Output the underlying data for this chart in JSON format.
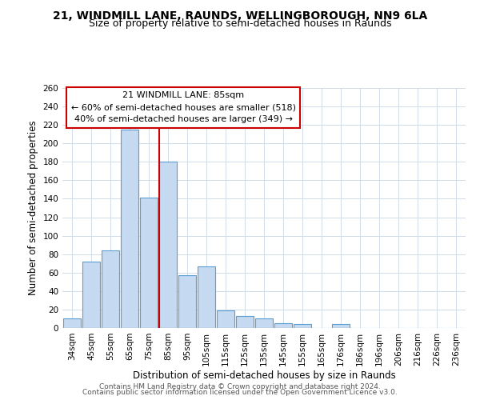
{
  "title": "21, WINDMILL LANE, RAUNDS, WELLINGBOROUGH, NN9 6LA",
  "subtitle": "Size of property relative to semi-detached houses in Raunds",
  "xlabel": "Distribution of semi-detached houses by size in Raunds",
  "ylabel": "Number of semi-detached properties",
  "bar_labels": [
    "34sqm",
    "45sqm",
    "55sqm",
    "65sqm",
    "75sqm",
    "85sqm",
    "95sqm",
    "105sqm",
    "115sqm",
    "125sqm",
    "135sqm",
    "145sqm",
    "155sqm",
    "165sqm",
    "176sqm",
    "186sqm",
    "196sqm",
    "206sqm",
    "216sqm",
    "226sqm",
    "236sqm"
  ],
  "bar_values": [
    10,
    72,
    84,
    215,
    141,
    180,
    57,
    67,
    19,
    13,
    10,
    5,
    4,
    0,
    4,
    0,
    0,
    0,
    0,
    0,
    0
  ],
  "bar_color": "#c5d9f0",
  "bar_edge_color": "#5a9fd4",
  "highlight_line_color": "#cc0000",
  "highlight_line_index": 5,
  "property_label": "21 WINDMILL LANE: 85sqm",
  "smaller_text": "← 60% of semi-detached houses are smaller (518)",
  "larger_text": "40% of semi-detached houses are larger (349) →",
  "annotation_box_color": "#ffffff",
  "annotation_box_edge": "#cc0000",
  "ylim": [
    0,
    260
  ],
  "yticks": [
    0,
    20,
    40,
    60,
    80,
    100,
    120,
    140,
    160,
    180,
    200,
    220,
    240,
    260
  ],
  "footer1": "Contains HM Land Registry data © Crown copyright and database right 2024.",
  "footer2": "Contains public sector information licensed under the Open Government Licence v3.0.",
  "title_fontsize": 10,
  "subtitle_fontsize": 9,
  "axis_label_fontsize": 8.5,
  "tick_fontsize": 7.5,
  "annot_fontsize": 8,
  "footer_fontsize": 6.5,
  "background_color": "#ffffff",
  "grid_color": "#d0dce8"
}
